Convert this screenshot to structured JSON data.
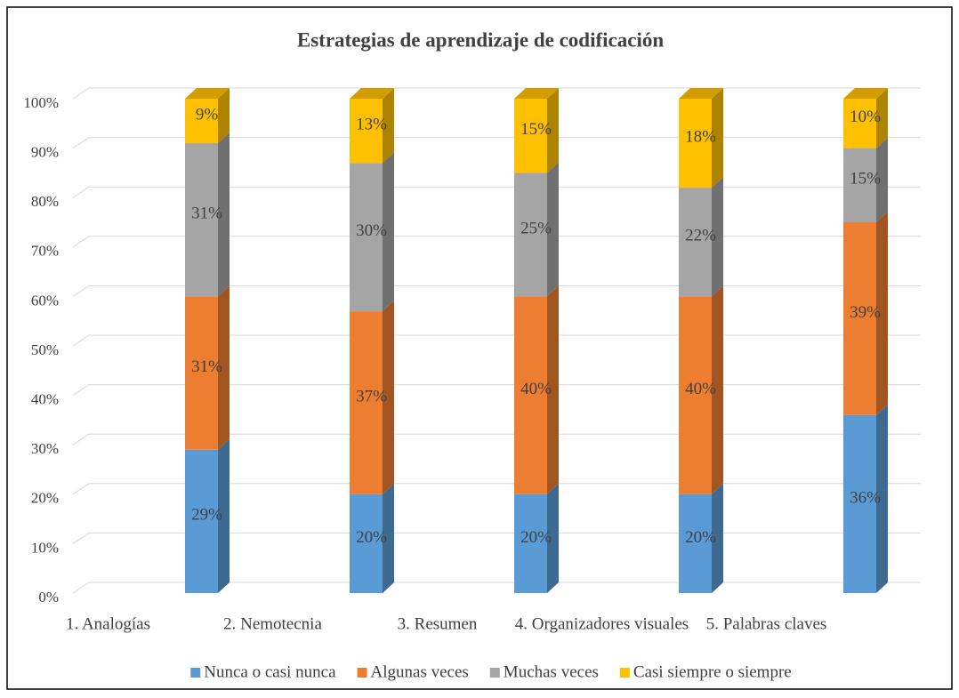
{
  "chart_data": {
    "type": "stacked_bar_3d",
    "title": "Estrategias de aprendizaje de codificación",
    "categories": [
      "1. Analogías",
      "2. Nemotecnia",
      "3. Resumen",
      "4. Organizadores visuales",
      "5. Palabras claves"
    ],
    "series": [
      {
        "name": "Nunca o casi nunca",
        "color": "#5b9bd5",
        "values": [
          29,
          20,
          20,
          20,
          36
        ],
        "value_labels": [
          "29%",
          "20%",
          "20%",
          "20%",
          "36%"
        ]
      },
      {
        "name": "Algunas veces",
        "color": "#ed7d31",
        "values": [
          31,
          37,
          40,
          40,
          39
        ],
        "value_labels": [
          "31%",
          "37%",
          "40%",
          "40%",
          "39%"
        ]
      },
      {
        "name": "Muchas veces",
        "color": "#a5a5a5",
        "values": [
          31,
          30,
          25,
          22,
          15
        ],
        "value_labels": [
          "31%",
          "30%",
          "25%",
          "22%",
          "15%"
        ]
      },
      {
        "name": "Casi siempre o siempre",
        "color": "#ffc000",
        "values": [
          9,
          13,
          15,
          18,
          10
        ],
        "value_labels": [
          "9%",
          "13%",
          "15%",
          "18%",
          "10%"
        ]
      }
    ],
    "ylim": [
      0,
      100
    ],
    "yticks": [
      {
        "value": 0,
        "label": "0%"
      },
      {
        "value": 10,
        "label": "10%"
      },
      {
        "value": 20,
        "label": "20%"
      },
      {
        "value": 30,
        "label": "30%"
      },
      {
        "value": 40,
        "label": "40%"
      },
      {
        "value": 50,
        "label": "50%"
      },
      {
        "value": 60,
        "label": "60%"
      },
      {
        "value": 70,
        "label": "70%"
      },
      {
        "value": 80,
        "label": "80%"
      },
      {
        "value": 90,
        "label": "90%"
      },
      {
        "value": 100,
        "label": "100%"
      }
    ],
    "grid": true,
    "legend": "bottom"
  }
}
